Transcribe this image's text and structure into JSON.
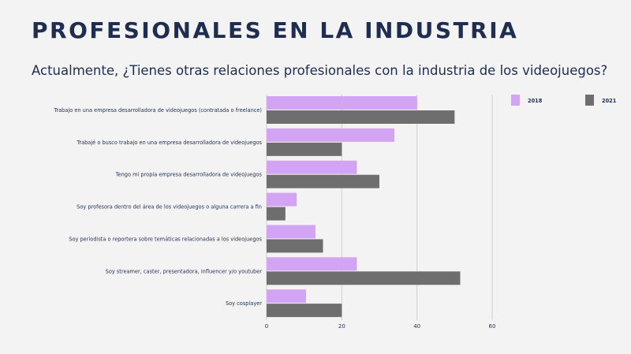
{
  "page": {
    "title": "PROFESIONALES EN LA INDUSTRIA",
    "subtitle": "Actualmente, ¿Tienes otras relaciones profesionales con la industria de los videojuegos?"
  },
  "chart_data": {
    "type": "bar",
    "orientation": "horizontal",
    "categories": [
      "Trabajo en una empresa desarrolladora de videojuegos (contratada o freelance)",
      "Trabajé o busco trabajo en una empresa desarrolladora de videojuegos",
      "Tengo mi propia empresa desarrolladora de videojuegos",
      "Soy profesora dentro del área de los videojuegos o alguna carrera a fin",
      "Soy periodista o reportera sobre temáticas relacionadas a los videojuegos",
      "Soy streamer, caster, presentadora, influencer y/o youtuber",
      "Soy cosplayer"
    ],
    "series": [
      {
        "name": "2018",
        "color": "#d4a4f4",
        "values": [
          40,
          34,
          24,
          8,
          13,
          24,
          10.5
        ]
      },
      {
        "name": "2021",
        "color": "#6e6e6e",
        "values": [
          50,
          20,
          30,
          5,
          15,
          51.5,
          20
        ]
      }
    ],
    "xlim": [
      0,
      60
    ],
    "xticks": [
      "0",
      "20",
      "40",
      "60"
    ],
    "grid": true,
    "legend": "top-right"
  }
}
